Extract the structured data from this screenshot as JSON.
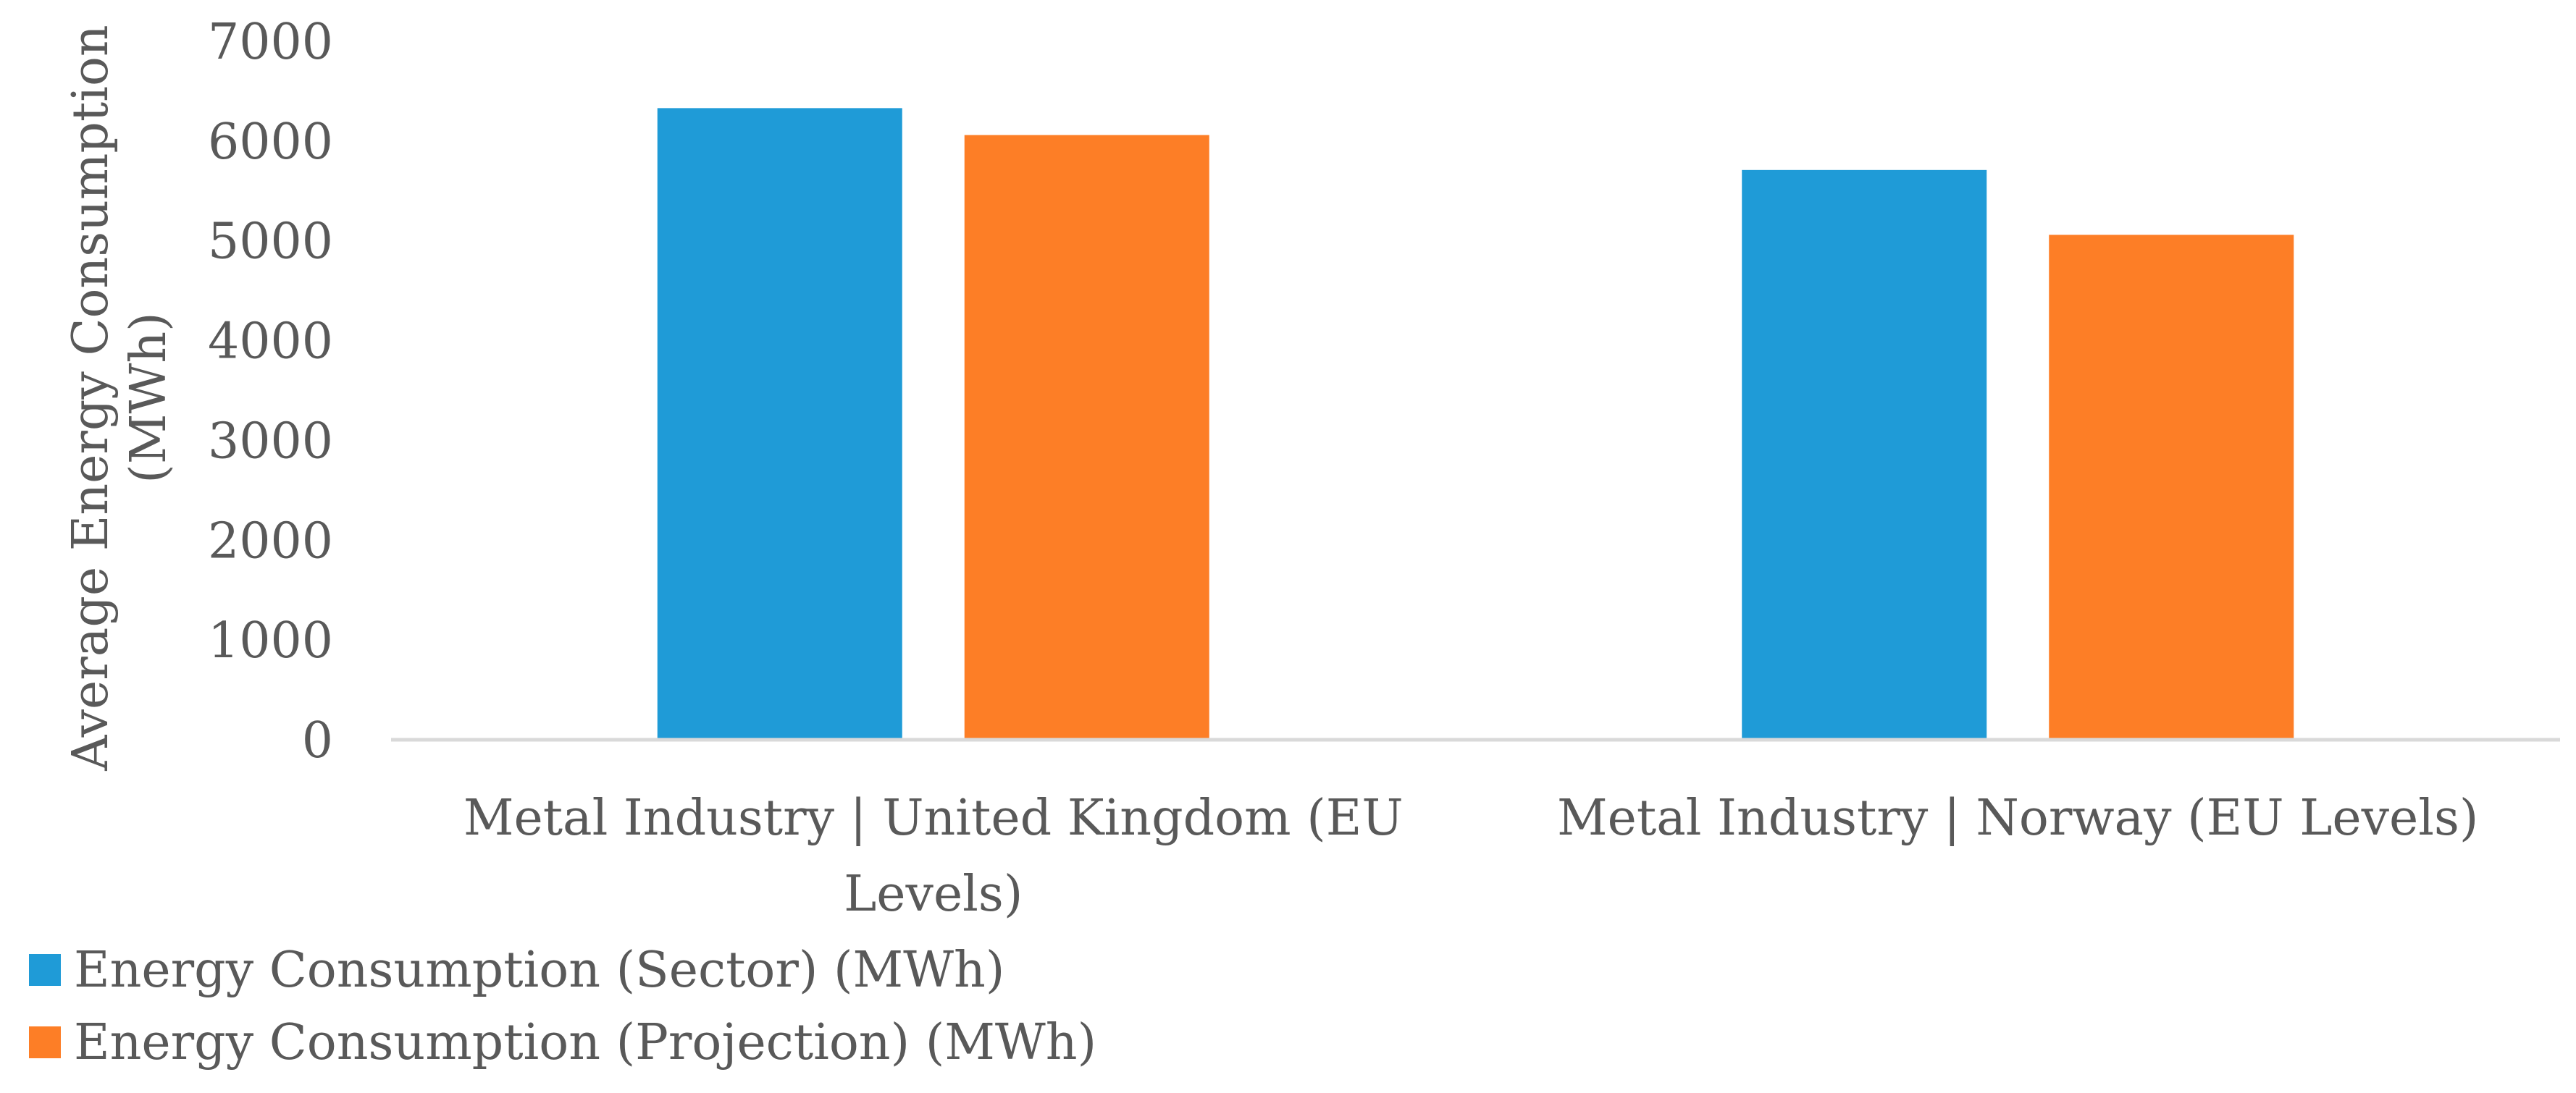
{
  "chart_data": {
    "type": "bar",
    "title": "",
    "ylabel_lines": [
      "Average Energy Consumption",
      "(MWh)"
    ],
    "xlabel": "",
    "ylim": [
      0,
      7000
    ],
    "yticks": [
      "0",
      "1000",
      "2000",
      "3000",
      "4000",
      "5000",
      "6000",
      "7000"
    ],
    "grid": false,
    "legend_position": "bottom-left",
    "categories": [
      [
        "Metal Industry | United Kingdom (EU",
        "Levels)"
      ],
      [
        "Metal Industry | Norway (EU Levels)"
      ]
    ],
    "series": [
      {
        "name": "Energy Consumption (Sector) (MWh)",
        "color": "#1F9BD7",
        "values": [
          6330,
          5710
        ]
      },
      {
        "name": "Energy Consumption (Projection) (MWh)",
        "color": "#FD7E26",
        "values": [
          6060,
          5060
        ]
      }
    ]
  }
}
